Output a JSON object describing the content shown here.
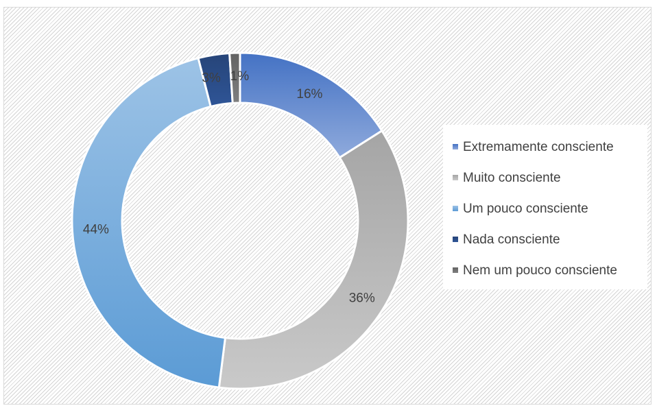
{
  "chart_data": {
    "type": "donut",
    "title": "",
    "legend_position": "right",
    "slices": [
      {
        "label": "Extremamente consciente",
        "value": 16,
        "display": "16%",
        "color_start": "#4472c4",
        "color_end": "#8faadc"
      },
      {
        "label": "Muito consciente",
        "value": 36,
        "display": "36%",
        "color_start": "#a5a5a5",
        "color_end": "#c9c9c9"
      },
      {
        "label": "Um pouco consciente",
        "value": 44,
        "display": "44%",
        "color_start": "#9dc3e6",
        "color_end": "#5b9bd5"
      },
      {
        "label": "Nada consciente",
        "value": 3,
        "display": "3%",
        "color_start": "#264478",
        "color_end": "#2f5597"
      },
      {
        "label": "Nem um pouco consciente",
        "value": 1,
        "display": "1%",
        "color_start": "#636363",
        "color_end": "#7f7f7f"
      }
    ]
  }
}
